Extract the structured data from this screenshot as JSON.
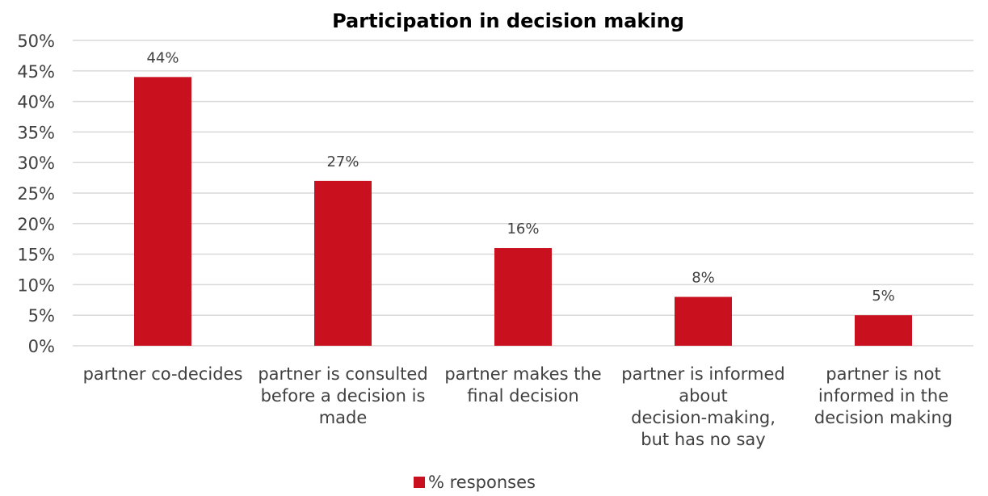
{
  "chart_data": {
    "type": "bar",
    "title": "Participation in decision making",
    "categories": [
      "partner co-decides",
      "partner is consulted before a decision is made",
      "partner makes the final decision",
      "partner is informed about decision-making, but has no say",
      "partner is not informed in the decision making"
    ],
    "series": [
      {
        "name": "% responses",
        "values": [
          44,
          27,
          16,
          8,
          5
        ],
        "color": "#c8101f"
      }
    ],
    "data_labels": [
      "44%",
      "27%",
      "16%",
      "8%",
      "5%"
    ],
    "y_ticks": [
      "0%",
      "5%",
      "10%",
      "15%",
      "20%",
      "25%",
      "30%",
      "35%",
      "40%",
      "45%",
      "50%"
    ],
    "ylim": [
      0,
      50
    ],
    "grid": true,
    "legend": "bottom"
  }
}
